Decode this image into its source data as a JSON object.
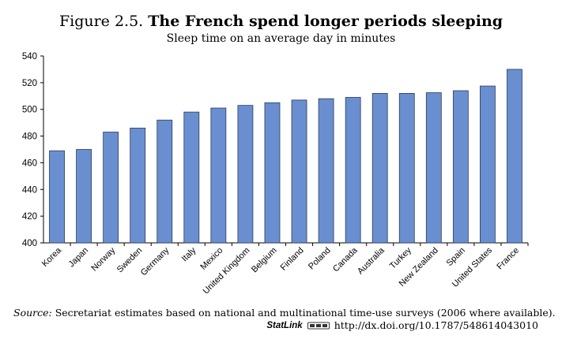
{
  "figure": {
    "number": "Figure 2.5.",
    "title": "The French spend longer periods sleeping",
    "subtitle": "Sleep time on an average day in minutes"
  },
  "chart_data": {
    "type": "bar",
    "categories": [
      "Korea",
      "Japan",
      "Norway",
      "Sweden",
      "Germany",
      "Italy",
      "Mexico",
      "United Kingdom",
      "Belgium",
      "Finland",
      "Poland",
      "Canada",
      "Australia",
      "Turkey",
      "New Zealand",
      "Spain",
      "United States",
      "France"
    ],
    "values": [
      469,
      470,
      483,
      486,
      492,
      498,
      501,
      503,
      505,
      507,
      508,
      509,
      512,
      512,
      512.5,
      514,
      517.5,
      530
    ],
    "ylim": [
      400,
      540
    ],
    "yticks": [
      400,
      420,
      440,
      460,
      480,
      500,
      520,
      540
    ],
    "grid": false,
    "bar_color": "#6a8fd0",
    "bar_edge_color": "#2b3a5a"
  },
  "source": {
    "label": "Source:",
    "text": "Secretariat estimates based on national and multinational time-use surveys (2006 where available)."
  },
  "statlink": {
    "brand": "StatLink",
    "url": "http://dx.doi.org/10.1787/548614043010"
  }
}
